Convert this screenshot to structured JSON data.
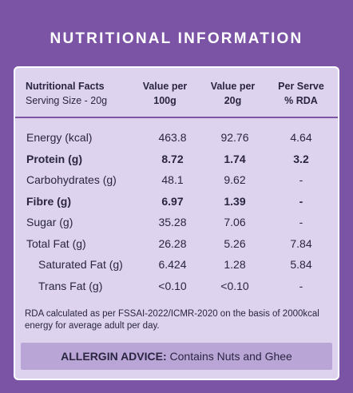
{
  "title": "NUTRITIONAL INFORMATION",
  "header": {
    "col1_line1": "Nutritional Facts",
    "col1_line2": "Serving Size - 20g",
    "col2_line1": "Value per",
    "col2_line2": "100g",
    "col3_line1": "Value per",
    "col3_line2": "20g",
    "col4_line1": "Per Serve",
    "col4_line2": "% RDA"
  },
  "rows": [
    {
      "name": "Energy (kcal)",
      "per100g": "463.8",
      "per20g": "92.76",
      "rda": "4.64",
      "bold": false,
      "indent": false
    },
    {
      "name": "Protein (g)",
      "per100g": "8.72",
      "per20g": "1.74",
      "rda": "3.2",
      "bold": true,
      "indent": false
    },
    {
      "name": "Carbohydrates (g)",
      "per100g": "48.1",
      "per20g": "9.62",
      "rda": "-",
      "bold": false,
      "indent": false
    },
    {
      "name": "Fibre (g)",
      "per100g": "6.97",
      "per20g": "1.39",
      "rda": "-",
      "bold": true,
      "indent": false
    },
    {
      "name": "Sugar (g)",
      "per100g": "35.28",
      "per20g": "7.06",
      "rda": "-",
      "bold": false,
      "indent": false
    },
    {
      "name": "Total Fat (g)",
      "per100g": "26.28",
      "per20g": "5.26",
      "rda": "7.84",
      "bold": false,
      "indent": false
    },
    {
      "name": "Saturated Fat (g)",
      "per100g": "6.424",
      "per20g": "1.28",
      "rda": "5.84",
      "bold": false,
      "indent": true
    },
    {
      "name": "Trans Fat (g)",
      "per100g": "<0.10",
      "per20g": "<0.10",
      "rda": "-",
      "bold": false,
      "indent": true
    }
  ],
  "note": "RDA calculated as per FSSAI-2022/ICMR-2020 on the basis of 2000kcal energy for average adult per day.",
  "allergen": {
    "label": "ALLERGIN ADVICE:",
    "text": "Contains Nuts and Ghee"
  },
  "colors": {
    "background": "#7b54a6",
    "card": "#ddd3ee",
    "allergen_band": "#b9a6d6",
    "text": "#2a2541"
  }
}
